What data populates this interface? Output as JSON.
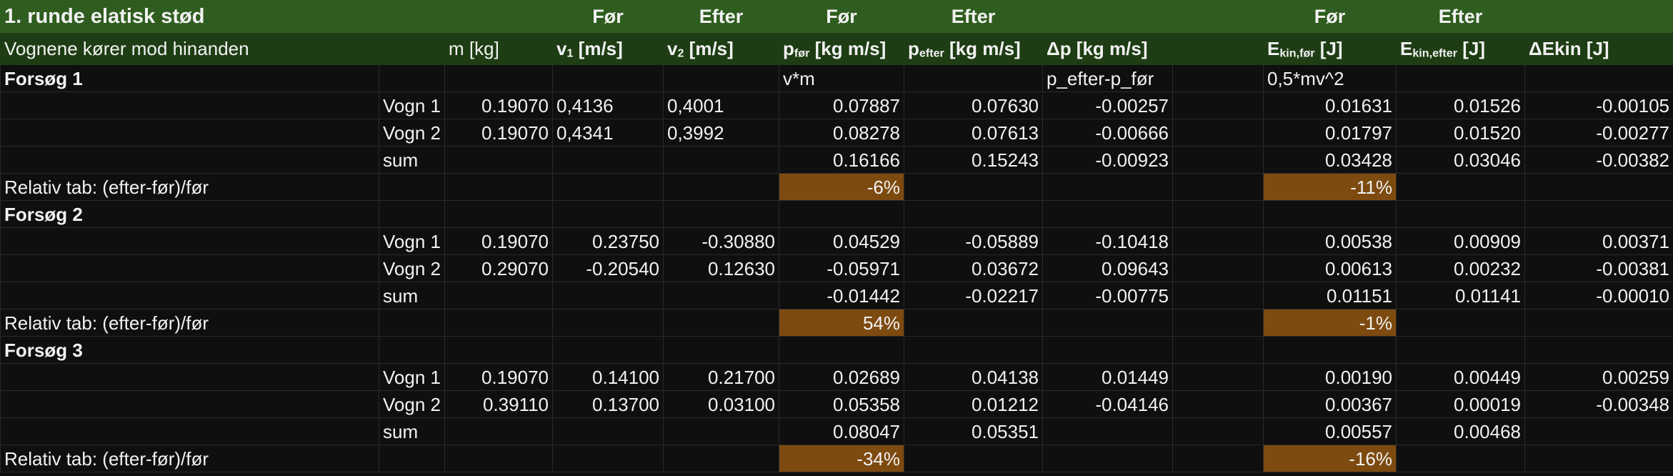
{
  "sheet": {
    "title": "1. runde elatisk stød",
    "top_headers": {
      "v1": "Før",
      "v2": "Efter",
      "p_for": "Før",
      "p_efter": "Efter",
      "e_for": "Før",
      "e_efter": "Efter"
    },
    "headers": {
      "desc": "Vognene kører mod hinanden",
      "m": "m [kg]",
      "v1_main": "v",
      "v1_sub": "1",
      "v1_unit": " [m/s]",
      "v2_main": "v",
      "v2_sub": "2",
      "v2_unit": " [m/s]",
      "pfor_main": "p",
      "pfor_sub": "før",
      "pfor_unit": " [kg m/s]",
      "pefter_main": "p",
      "pefter_sub": "efter",
      "pefter_unit": " [kg m/s]",
      "dp": "Δp  [kg m/s]",
      "efor_main": "E",
      "efor_sub": "kin,før",
      "efor_unit": "  [J]",
      "eefter_main": "E",
      "eefter_sub": "kin,efter",
      "eefter_unit": "  [J]",
      "dekin": "ΔEkin [J]"
    },
    "labels": {
      "relativ": "Relativ tab:  (efter-før)/før"
    },
    "sections": [
      {
        "title": "Forsøg 1",
        "formulas": {
          "p": "v*m",
          "dp": "p_efter-p_før",
          "e": "0,5*mv^2"
        },
        "rows": [
          {
            "name": "Vogn 1",
            "m": "0.19070",
            "v1": "0,4136",
            "v2": "0,4001",
            "p_for": "0.07887",
            "p_efter": "0.07630",
            "dp": "-0.00257",
            "e_for": "0.01631",
            "e_efter": "0.01526",
            "de": "-0.00105"
          },
          {
            "name": "Vogn 2",
            "m": "0.19070",
            "v1": "0,4341",
            "v2": "0,3992",
            "p_for": "0.08278",
            "p_efter": "0.07613",
            "dp": "-0.00666",
            "e_for": "0.01797",
            "e_efter": "0.01520",
            "de": "-0.00277"
          }
        ],
        "sum": {
          "name": "sum",
          "p_for": "0.16166",
          "p_efter": "0.15243",
          "dp": "-0.00923",
          "e_for": "0.03428",
          "e_efter": "0.03046",
          "de": "-0.00382"
        },
        "relative": {
          "p": "-6%",
          "e": "-11%"
        }
      },
      {
        "title": "Forsøg 2",
        "rows": [
          {
            "name": "Vogn 1",
            "m": "0.19070",
            "v1": "0.23750",
            "v2": "-0.30880",
            "p_for": "0.04529",
            "p_efter": "-0.05889",
            "dp": "-0.10418",
            "e_for": "0.00538",
            "e_efter": "0.00909",
            "de": "0.00371"
          },
          {
            "name": "Vogn 2",
            "m": "0.29070",
            "v1": "-0.20540",
            "v2": "0.12630",
            "p_for": "-0.05971",
            "p_efter": "0.03672",
            "dp": "0.09643",
            "e_for": "0.00613",
            "e_efter": "0.00232",
            "de": "-0.00381"
          }
        ],
        "sum": {
          "name": "sum",
          "p_for": "-0.01442",
          "p_efter": "-0.02217",
          "dp": "-0.00775",
          "e_for": "0.01151",
          "e_efter": "0.01141",
          "de": "-0.00010"
        },
        "relative": {
          "p": "54%",
          "e": "-1%"
        }
      },
      {
        "title": "Forsøg 3",
        "rows": [
          {
            "name": "Vogn 1",
            "m": "0.19070",
            "v1": "0.14100",
            "v2": "0.21700",
            "p_for": "0.02689",
            "p_efter": "0.04138",
            "dp": "0.01449",
            "e_for": "0.00190",
            "e_efter": "0.00449",
            "de": "0.00259"
          },
          {
            "name": "Vogn 2",
            "m": "0.39110",
            "v1": "0.13700",
            "v2": "0.03100",
            "p_for": "0.05358",
            "p_efter": "0.01212",
            "dp": "-0.04146",
            "e_for": "0.00367",
            "e_efter": "0.00019",
            "de": "-0.00348"
          }
        ],
        "sum": {
          "name": "sum",
          "p_for": "0.08047",
          "p_efter": "0.05351",
          "e_for": "0.00557",
          "e_efter": "0.00468"
        },
        "relative": {
          "p": "-34%",
          "e": "-16%"
        }
      }
    ],
    "colors": {
      "title_bg": "#2f5d1f",
      "header_bg": "#1e3d14",
      "highlight": "#7d4a0f",
      "grid": "#2a2a2a",
      "background": "#0f0f0f"
    }
  }
}
